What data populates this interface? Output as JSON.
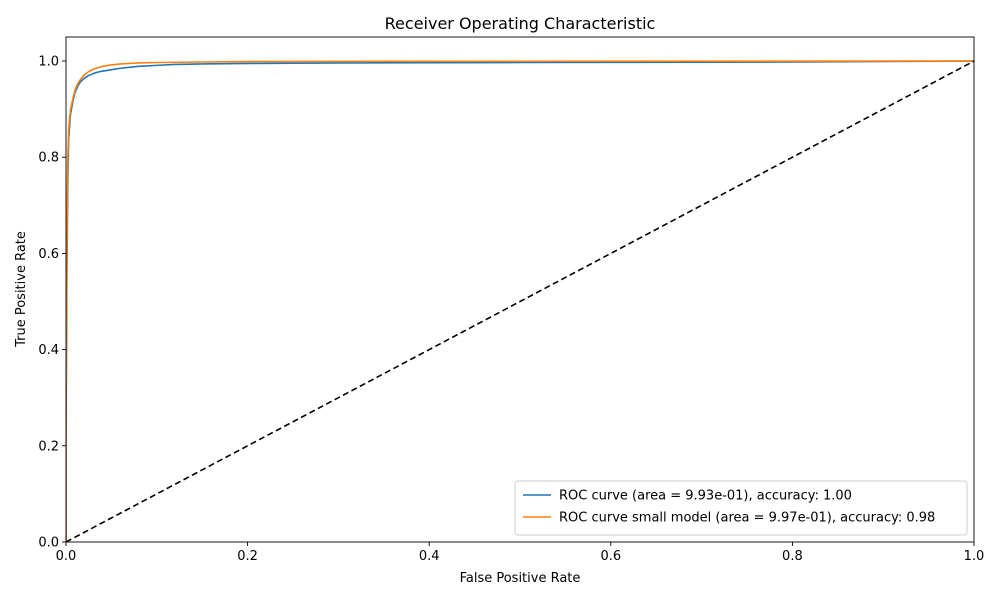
{
  "chart_data": {
    "type": "line",
    "title": "Receiver Operating Characteristic",
    "xlabel": "False Positive Rate",
    "ylabel": "True Positive Rate",
    "xlim": [
      0,
      1
    ],
    "ylim": [
      0,
      1.05
    ],
    "xticks": [
      0,
      0.2,
      0.4,
      0.6,
      0.8,
      1
    ],
    "xtick_labels": [
      "0.0",
      "0.2",
      "0.4",
      "0.6",
      "0.8",
      "1.0"
    ],
    "yticks": [
      0,
      0.2,
      0.4,
      0.6,
      0.8,
      1
    ],
    "ytick_labels": [
      "0.0",
      "0.2",
      "0.4",
      "0.6",
      "0.8",
      "1.0"
    ],
    "grid": false,
    "legend_position": "lower-right",
    "series": [
      {
        "name": "ROC curve (area = 9.93e-01), accuracy: 1.00",
        "color": "#1f77b4",
        "x": [
          0,
          0,
          0.001,
          0.002,
          0.003,
          0.005,
          0.008,
          0.01,
          0.013,
          0.016,
          0.02,
          0.025,
          0.03,
          0.035,
          0.04,
          0.05,
          0.06,
          0.07,
          0.08,
          0.1,
          0.12,
          0.15,
          0.2,
          0.3,
          0.5,
          0.8,
          1.0
        ],
        "y": [
          0,
          0.2,
          0.55,
          0.75,
          0.84,
          0.89,
          0.92,
          0.935,
          0.948,
          0.957,
          0.964,
          0.97,
          0.974,
          0.977,
          0.979,
          0.982,
          0.985,
          0.987,
          0.989,
          0.991,
          0.993,
          0.994,
          0.995,
          0.996,
          0.997,
          0.998,
          1.0
        ]
      },
      {
        "name": "ROC curve small model (area = 9.97e-01), accuracy: 0.98",
        "color": "#ff7f0e",
        "x": [
          0,
          0,
          0.001,
          0.002,
          0.003,
          0.005,
          0.008,
          0.01,
          0.013,
          0.016,
          0.02,
          0.025,
          0.03,
          0.035,
          0.04,
          0.05,
          0.06,
          0.08,
          0.1,
          0.15,
          0.2,
          0.4,
          1.0
        ],
        "y": [
          0,
          0.3,
          0.62,
          0.8,
          0.86,
          0.9,
          0.925,
          0.94,
          0.953,
          0.962,
          0.971,
          0.978,
          0.983,
          0.986,
          0.989,
          0.992,
          0.994,
          0.996,
          0.997,
          0.998,
          0.999,
          0.9995,
          1.0
        ]
      },
      {
        "name": "",
        "color": "#000000",
        "dashed": true,
        "x": [
          0,
          1
        ],
        "y": [
          0,
          1
        ]
      }
    ]
  }
}
